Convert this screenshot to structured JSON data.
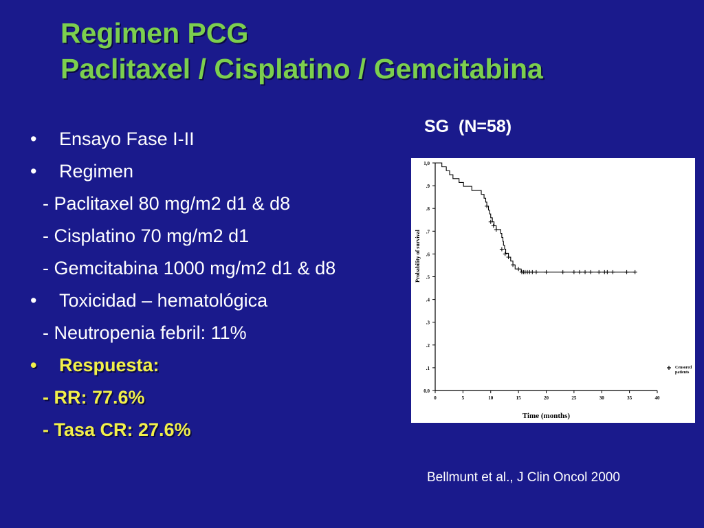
{
  "slide": {
    "title_line1": "Regimen PCG",
    "title_line2": "Paclitaxel / Cisplatino / Gemcitabina",
    "bullets": {
      "b1": "Ensayo Fase I-II",
      "b2": "Regimen",
      "s1": "- Paclitaxel 80 mg/m2 d1 & d8",
      "s2": "- Cisplatino 70 mg/m2 d1",
      "s3": "- Gemcitabina 1000 mg/m2 d1 & d8",
      "b3": "Toxicidad – hematológica",
      "s4": "- Neutropenia febril: 11%",
      "b4": "Respuesta:",
      "s5": "- RR: 77.6%",
      "s6": "- Tasa CR: 27.6%"
    },
    "bullet_glyph": "•",
    "chart_heading": "SG  (N=58)",
    "citation": "Bellmunt et al., J Clin Oncol 2000",
    "colors": {
      "background": "#1a1a8c",
      "title": "#7ccf4e",
      "highlight": "#f2f04a",
      "text": "#ffffff"
    }
  },
  "chart_data": {
    "type": "line",
    "title": "",
    "xlabel": "Time (months)",
    "ylabel": "Probability of survival",
    "xlim": [
      0,
      40
    ],
    "ylim": [
      0,
      1
    ],
    "x_ticks": [
      0,
      5,
      10,
      15,
      20,
      25,
      30,
      35,
      40
    ],
    "y_ticks": [
      0.0,
      0.1,
      0.2,
      0.3,
      0.4,
      0.5,
      0.6,
      0.7,
      0.8,
      0.9,
      1.0
    ],
    "y_tick_labels": [
      "0.0",
      ".1",
      ".2",
      ".3",
      ".4",
      ".5",
      ".6",
      ".7",
      ".8",
      ".9",
      "1,0"
    ],
    "grid": false,
    "legend": {
      "placement": "bottom-right",
      "marker": "+",
      "label_line1": "Censored",
      "label_line2": "patients"
    },
    "series": [
      {
        "steps": [
          [
            0,
            1.0
          ],
          [
            1.2,
            0.983
          ],
          [
            2.0,
            0.966
          ],
          [
            2.6,
            0.948
          ],
          [
            3.2,
            0.931
          ],
          [
            4.3,
            0.914
          ],
          [
            5.1,
            0.897
          ],
          [
            6.6,
            0.879
          ],
          [
            8.3,
            0.862
          ],
          [
            8.8,
            0.845
          ],
          [
            9.1,
            0.828
          ],
          [
            9.3,
            0.81
          ],
          [
            9.6,
            0.793
          ],
          [
            9.8,
            0.776
          ],
          [
            10.0,
            0.759
          ],
          [
            10.3,
            0.741
          ],
          [
            10.6,
            0.724
          ],
          [
            11.0,
            0.707
          ],
          [
            11.8,
            0.69
          ],
          [
            12.0,
            0.672
          ],
          [
            12.2,
            0.655
          ],
          [
            12.3,
            0.638
          ],
          [
            12.5,
            0.621
          ],
          [
            12.7,
            0.603
          ],
          [
            13.2,
            0.586
          ],
          [
            13.6,
            0.569
          ],
          [
            14.0,
            0.552
          ],
          [
            14.4,
            0.534
          ],
          [
            15.5,
            0.52
          ],
          [
            40,
            0.52
          ]
        ],
        "end_x": 36,
        "censored": [
          [
            9.3,
            0.81
          ],
          [
            10.0,
            0.741
          ],
          [
            10.5,
            0.724
          ],
          [
            11.0,
            0.707
          ],
          [
            12.0,
            0.621
          ],
          [
            12.6,
            0.6
          ],
          [
            13.2,
            0.586
          ],
          [
            14.0,
            0.552
          ],
          [
            15.0,
            0.534
          ],
          [
            15.6,
            0.52
          ],
          [
            15.9,
            0.52
          ],
          [
            16.2,
            0.52
          ],
          [
            16.6,
            0.52
          ],
          [
            17.0,
            0.52
          ],
          [
            17.5,
            0.52
          ],
          [
            18.2,
            0.52
          ],
          [
            20.0,
            0.52
          ],
          [
            23.0,
            0.52
          ],
          [
            25.0,
            0.52
          ],
          [
            26.0,
            0.52
          ],
          [
            27.0,
            0.52
          ],
          [
            28.0,
            0.52
          ],
          [
            29.5,
            0.52
          ],
          [
            30.5,
            0.52
          ],
          [
            31.0,
            0.52
          ],
          [
            32.0,
            0.52
          ],
          [
            34.5,
            0.52
          ],
          [
            36.0,
            0.52
          ]
        ]
      }
    ]
  }
}
